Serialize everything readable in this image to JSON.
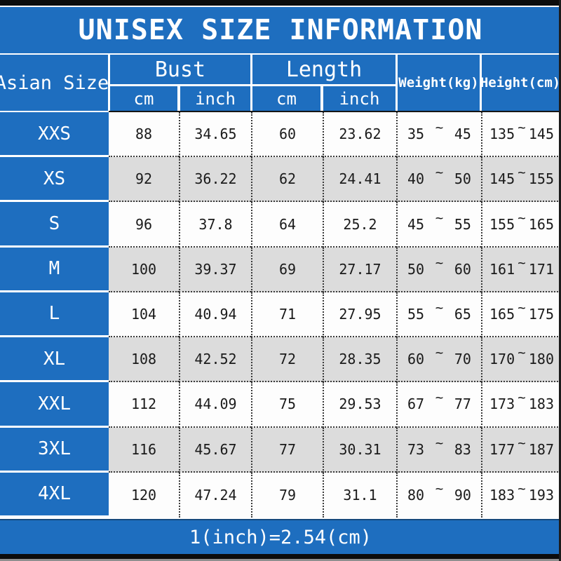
{
  "title": "UNISEX SIZE INFORMATION",
  "header": {
    "size_col": "Asian Size",
    "bust": "Bust",
    "length": "Length",
    "cm": "cm",
    "inch": "inch",
    "weight": "Weight(kg)",
    "height": "Height(cm)",
    "range_symbol": "~"
  },
  "footer": {
    "formula": "1(inch)=2.54(cm)"
  },
  "colors": {
    "blue": "#1e6ebf",
    "row_alt_gray": "#dcdcdc",
    "row_white": "#fdfdfd",
    "bar_black": "#0c0c0c"
  },
  "chart_data": {
    "type": "table",
    "title": "UNISEX SIZE INFORMATION",
    "columns": [
      "Asian Size",
      "Bust cm",
      "Bust inch",
      "Length cm",
      "Length inch",
      "Weight(kg)",
      "Height(cm)"
    ],
    "note": "1(inch)=2.54(cm)",
    "rows": [
      {
        "size": "XXS",
        "bust_cm": "88",
        "bust_inch": "34.65",
        "length_cm": "60",
        "length_inch": "23.62",
        "weight_min": "35",
        "weight_max": "45",
        "height_min": "135",
        "height_max": "145"
      },
      {
        "size": "XS",
        "bust_cm": "92",
        "bust_inch": "36.22",
        "length_cm": "62",
        "length_inch": "24.41",
        "weight_min": "40",
        "weight_max": "50",
        "height_min": "145",
        "height_max": "155"
      },
      {
        "size": "S",
        "bust_cm": "96",
        "bust_inch": "37.8",
        "length_cm": "64",
        "length_inch": "25.2",
        "weight_min": "45",
        "weight_max": "55",
        "height_min": "155",
        "height_max": "165"
      },
      {
        "size": "M",
        "bust_cm": "100",
        "bust_inch": "39.37",
        "length_cm": "69",
        "length_inch": "27.17",
        "weight_min": "50",
        "weight_max": "60",
        "height_min": "161",
        "height_max": "171"
      },
      {
        "size": "L",
        "bust_cm": "104",
        "bust_inch": "40.94",
        "length_cm": "71",
        "length_inch": "27.95",
        "weight_min": "55",
        "weight_max": "65",
        "height_min": "165",
        "height_max": "175"
      },
      {
        "size": "XL",
        "bust_cm": "108",
        "bust_inch": "42.52",
        "length_cm": "72",
        "length_inch": "28.35",
        "weight_min": "60",
        "weight_max": "70",
        "height_min": "170",
        "height_max": "180"
      },
      {
        "size": "XXL",
        "bust_cm": "112",
        "bust_inch": "44.09",
        "length_cm": "75",
        "length_inch": "29.53",
        "weight_min": "67",
        "weight_max": "77",
        "height_min": "173",
        "height_max": "183"
      },
      {
        "size": "3XL",
        "bust_cm": "116",
        "bust_inch": "45.67",
        "length_cm": "77",
        "length_inch": "30.31",
        "weight_min": "73",
        "weight_max": "83",
        "height_min": "177",
        "height_max": "187"
      },
      {
        "size": "4XL",
        "bust_cm": "120",
        "bust_inch": "47.24",
        "length_cm": "79",
        "length_inch": "31.1",
        "weight_min": "80",
        "weight_max": "90",
        "height_min": "183",
        "height_max": "193"
      }
    ]
  }
}
